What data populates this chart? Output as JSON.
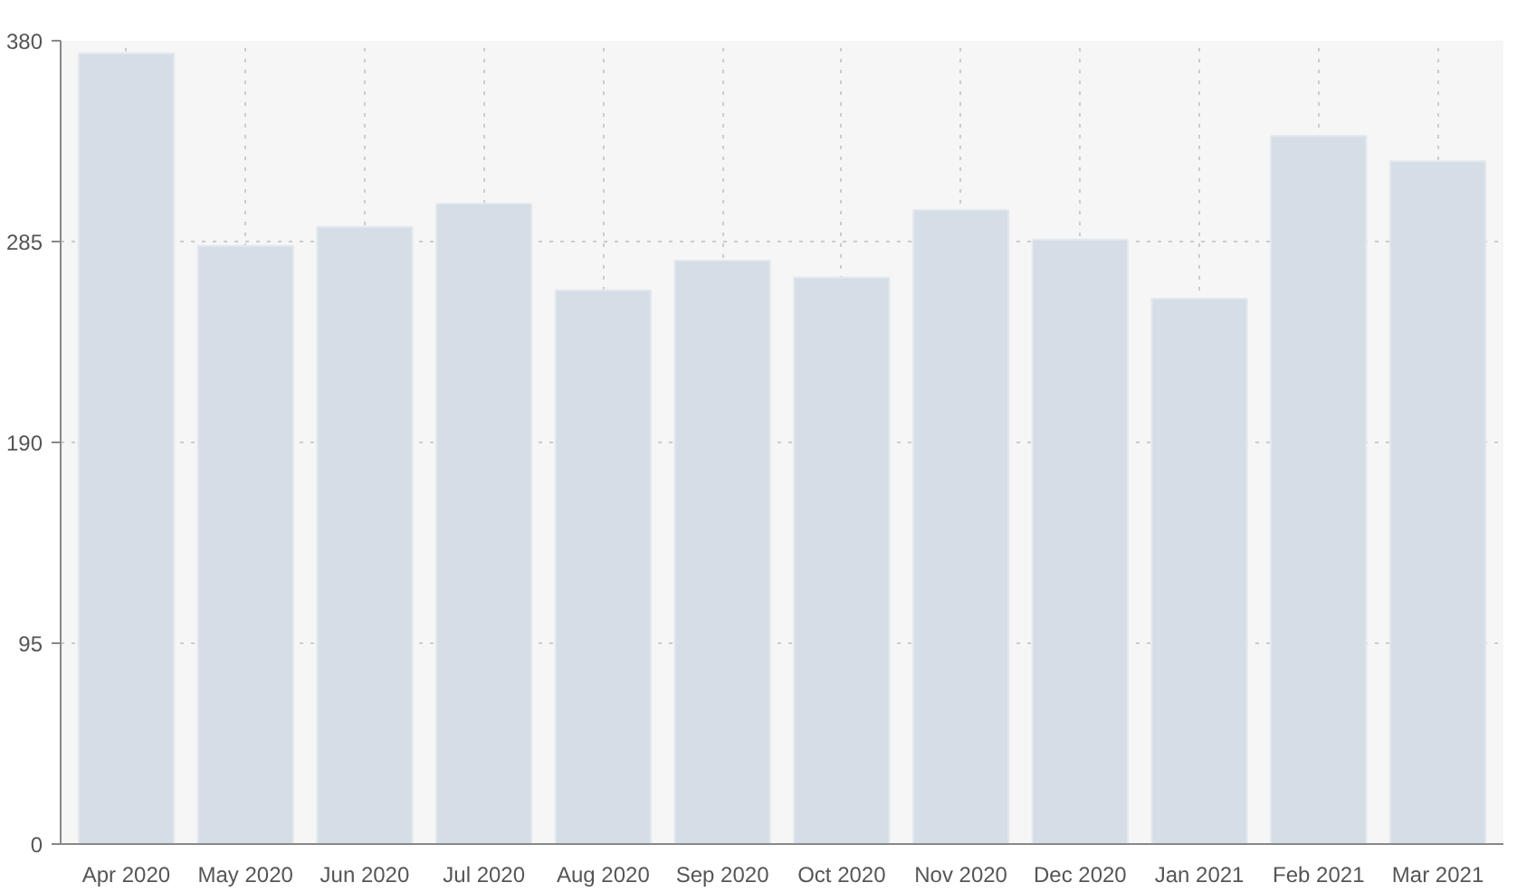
{
  "chart_data": {
    "type": "bar",
    "categories": [
      "Apr 2020",
      "May 2020",
      "Jun 2020",
      "Jul 2020",
      "Aug 2020",
      "Sep 2020",
      "Oct 2020",
      "Nov 2020",
      "Dec 2020",
      "Jan 2021",
      "Feb 2021",
      "Mar 2021"
    ],
    "values": [
      374,
      283,
      292,
      303,
      262,
      276,
      268,
      300,
      286,
      258,
      335,
      323
    ],
    "color": "#d5dde6",
    "ylim": [
      0,
      380
    ],
    "yticks": [
      0,
      95,
      190,
      285,
      380
    ],
    "grid": true
  }
}
